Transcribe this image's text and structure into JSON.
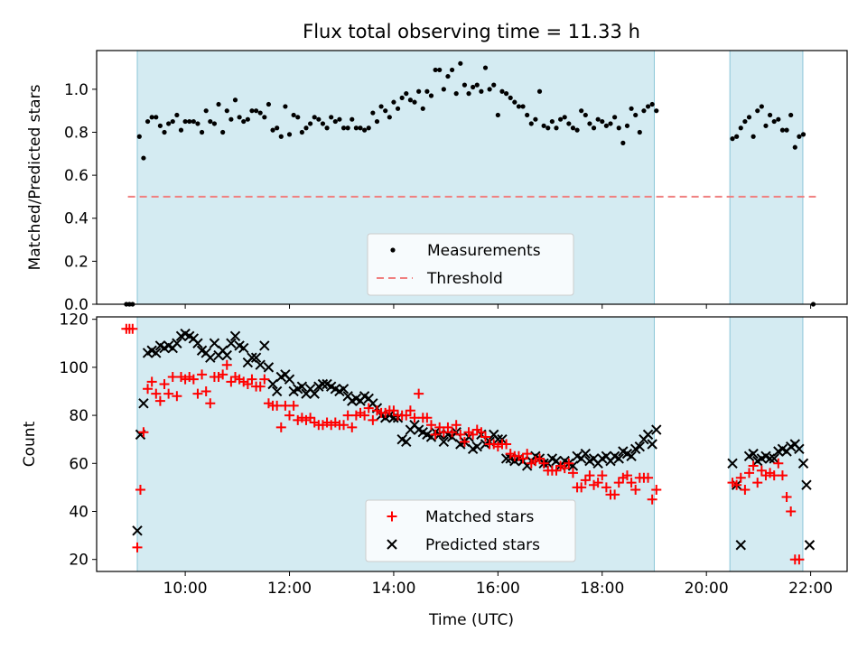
{
  "chart_data": [
    {
      "type": "scatter",
      "title": "Flux total observing time = 11.33 h",
      "ylabel": "Matched/Predicted stars",
      "xlabel": "",
      "xlim": [
        8.3,
        22.7
      ],
      "ylim": [
        0,
        1.18
      ],
      "yticks": [
        "0.0",
        "0.2",
        "0.4",
        "0.6",
        "0.8",
        "1.0"
      ],
      "legend_position": "bottom-center",
      "legend": [
        "Measurements",
        "Threshold"
      ],
      "observing_windows": [
        [
          9.08,
          19.0
        ],
        [
          20.45,
          21.85
        ]
      ],
      "threshold": {
        "y": 0.5,
        "x": [
          8.9,
          22.1
        ],
        "color": "#f08080"
      },
      "measurement_color": "#000000",
      "series": [
        {
          "name": "Measurements",
          "x": [
            8.87,
            8.93,
            8.99,
            9.12,
            9.2,
            9.28,
            9.36,
            9.44,
            9.52,
            9.6,
            9.68,
            9.76,
            9.84,
            9.92,
            10.0,
            10.08,
            10.16,
            10.24,
            10.32,
            10.4,
            10.48,
            10.56,
            10.64,
            10.72,
            10.8,
            10.88,
            10.96,
            11.04,
            11.12,
            11.2,
            11.28,
            11.36,
            11.44,
            11.52,
            11.6,
            11.68,
            11.76,
            11.84,
            11.92,
            12.0,
            12.08,
            12.16,
            12.24,
            12.32,
            12.4,
            12.48,
            12.56,
            12.64,
            12.72,
            12.8,
            12.88,
            12.96,
            13.04,
            13.12,
            13.2,
            13.28,
            13.36,
            13.44,
            13.52,
            13.6,
            13.68,
            13.76,
            13.84,
            13.92,
            14.0,
            14.08,
            14.16,
            14.24,
            14.32,
            14.4,
            14.48,
            14.56,
            14.64,
            14.72,
            14.8,
            14.88,
            14.96,
            15.04,
            15.12,
            15.2,
            15.28,
            15.36,
            15.44,
            15.52,
            15.6,
            15.68,
            15.76,
            15.84,
            15.92,
            16.0,
            16.08,
            16.16,
            16.24,
            16.32,
            16.4,
            16.48,
            16.56,
            16.64,
            16.72,
            16.8,
            16.88,
            16.96,
            17.04,
            17.12,
            17.2,
            17.28,
            17.36,
            17.44,
            17.52,
            17.6,
            17.68,
            17.76,
            17.84,
            17.92,
            18.0,
            18.08,
            18.16,
            18.24,
            18.32,
            18.4,
            18.48,
            18.56,
            18.64,
            18.72,
            18.8,
            18.88,
            18.96,
            19.04,
            20.5,
            20.58,
            20.66,
            20.74,
            20.82,
            20.9,
            20.98,
            21.06,
            21.14,
            21.22,
            21.3,
            21.38,
            21.46,
            21.54,
            21.62,
            21.7,
            21.78,
            21.86,
            22.05
          ],
          "y": [
            0.0,
            0.0,
            0.0,
            0.78,
            0.68,
            0.85,
            0.87,
            0.87,
            0.83,
            0.8,
            0.84,
            0.85,
            0.88,
            0.81,
            0.85,
            0.85,
            0.85,
            0.84,
            0.8,
            0.9,
            0.85,
            0.84,
            0.93,
            0.8,
            0.9,
            0.86,
            0.95,
            0.87,
            0.85,
            0.86,
            0.9,
            0.9,
            0.89,
            0.87,
            0.93,
            0.81,
            0.82,
            0.78,
            0.92,
            0.79,
            0.88,
            0.87,
            0.8,
            0.82,
            0.84,
            0.87,
            0.86,
            0.84,
            0.82,
            0.87,
            0.85,
            0.86,
            0.82,
            0.82,
            0.86,
            0.82,
            0.82,
            0.81,
            0.82,
            0.89,
            0.85,
            0.92,
            0.9,
            0.87,
            0.94,
            0.91,
            0.96,
            0.98,
            0.95,
            0.94,
            0.99,
            0.91,
            0.99,
            0.97,
            1.09,
            1.09,
            1.0,
            1.06,
            1.09,
            0.98,
            1.12,
            1.02,
            0.98,
            1.01,
            1.02,
            0.99,
            1.1,
            1.0,
            1.02,
            0.88,
            0.99,
            0.98,
            0.96,
            0.94,
            0.92,
            0.92,
            0.88,
            0.84,
            0.86,
            0.99,
            0.83,
            0.82,
            0.85,
            0.82,
            0.86,
            0.87,
            0.84,
            0.82,
            0.81,
            0.9,
            0.88,
            0.84,
            0.82,
            0.86,
            0.85,
            0.83,
            0.84,
            0.87,
            0.82,
            0.75,
            0.83,
            0.91,
            0.88,
            0.8,
            0.9,
            0.92,
            0.93,
            0.9,
            0.77,
            0.78,
            0.82,
            0.85,
            0.87,
            0.78,
            0.9,
            0.92,
            0.83,
            0.88,
            0.85,
            0.86,
            0.81,
            0.81,
            0.88,
            0.73,
            0.78,
            0.79,
            0.0
          ]
        }
      ]
    },
    {
      "type": "scatter",
      "title": "",
      "xlabel": "Time (UTC)",
      "ylabel": "Count",
      "xlim": [
        8.3,
        22.7
      ],
      "ylim": [
        15,
        121
      ],
      "yticks": [
        "20",
        "40",
        "60",
        "80",
        "100",
        "120"
      ],
      "xticks": [
        "10:00",
        "12:00",
        "14:00",
        "16:00",
        "18:00",
        "20:00",
        "22:00"
      ],
      "legend_position": "bottom-center",
      "legend": [
        "Matched stars",
        "Predicted stars"
      ],
      "observing_windows": [
        [
          9.08,
          19.0
        ],
        [
          20.45,
          21.85
        ]
      ],
      "matched_color": "#ff0000",
      "predicted_color": "#000000",
      "x": [
        8.87,
        8.93,
        8.99,
        9.08,
        9.14,
        9.2,
        9.28,
        9.36,
        9.44,
        9.52,
        9.6,
        9.68,
        9.76,
        9.84,
        9.92,
        10.0,
        10.08,
        10.16,
        10.24,
        10.32,
        10.4,
        10.48,
        10.56,
        10.64,
        10.72,
        10.8,
        10.88,
        10.96,
        11.04,
        11.12,
        11.2,
        11.28,
        11.36,
        11.44,
        11.52,
        11.6,
        11.68,
        11.76,
        11.84,
        11.92,
        12.0,
        12.08,
        12.16,
        12.24,
        12.32,
        12.4,
        12.48,
        12.56,
        12.64,
        12.72,
        12.8,
        12.88,
        12.96,
        13.04,
        13.12,
        13.2,
        13.28,
        13.36,
        13.44,
        13.52,
        13.6,
        13.68,
        13.76,
        13.84,
        13.92,
        14.0,
        14.08,
        14.16,
        14.24,
        14.32,
        14.4,
        14.48,
        14.56,
        14.64,
        14.72,
        14.8,
        14.88,
        14.96,
        15.04,
        15.12,
        15.2,
        15.28,
        15.36,
        15.44,
        15.52,
        15.6,
        15.68,
        15.76,
        15.84,
        15.92,
        16.0,
        16.08,
        16.16,
        16.24,
        16.32,
        16.4,
        16.48,
        16.56,
        16.64,
        16.72,
        16.8,
        16.88,
        16.96,
        17.04,
        17.12,
        17.2,
        17.28,
        17.36,
        17.44,
        17.52,
        17.6,
        17.68,
        17.76,
        17.84,
        17.92,
        18.0,
        18.08,
        18.16,
        18.24,
        18.32,
        18.4,
        18.48,
        18.56,
        18.64,
        18.72,
        18.8,
        18.88,
        18.96,
        19.04,
        20.5,
        20.58,
        20.66,
        20.74,
        20.82,
        20.9,
        20.98,
        21.06,
        21.14,
        21.22,
        21.3,
        21.38,
        21.46,
        21.54,
        21.62,
        21.7,
        21.78,
        21.86,
        21.92,
        21.98,
        22.05
      ],
      "series": [
        {
          "name": "Matched stars",
          "values": [
            116,
            116,
            116,
            25,
            49,
            73,
            91,
            94,
            89,
            86,
            93,
            89,
            96,
            88,
            96,
            95,
            96,
            95,
            89,
            97,
            90,
            85,
            96,
            96,
            97,
            101,
            94,
            96,
            95,
            94,
            93,
            95,
            92,
            92,
            95,
            85,
            84,
            84,
            75,
            84,
            80,
            84,
            78,
            79,
            78,
            79,
            77,
            76,
            76,
            77,
            76,
            77,
            76,
            76,
            80,
            75,
            80,
            81,
            80,
            83,
            78,
            82,
            81,
            81,
            82,
            82,
            80,
            80,
            80,
            82,
            79,
            89,
            79,
            79,
            76,
            72,
            75,
            73,
            75,
            73,
            76,
            72,
            69,
            73,
            72,
            74,
            73,
            71,
            68,
            68,
            67,
            68,
            68,
            64,
            63,
            63,
            62,
            64,
            60,
            61,
            62,
            60,
            57,
            57,
            57,
            59,
            58,
            60,
            56,
            50,
            50,
            53,
            55,
            51,
            52,
            55,
            50,
            47,
            47,
            52,
            54,
            55,
            52,
            49,
            54,
            54,
            54,
            45,
            49,
            52,
            51,
            54,
            49,
            56,
            59,
            52,
            57,
            55,
            56,
            55,
            60,
            55,
            46,
            40,
            20,
            20
          ]
        },
        {
          "name": "Predicted stars",
          "values": [
            null,
            null,
            null,
            32,
            72,
            85,
            106,
            107,
            106,
            109,
            108,
            109,
            108,
            110,
            113,
            114,
            113,
            112,
            110,
            107,
            106,
            104,
            110,
            105,
            107,
            105,
            110,
            113,
            109,
            108,
            102,
            104,
            104,
            101,
            109,
            100,
            93,
            90,
            96,
            97,
            95,
            90,
            91,
            92,
            89,
            91,
            89,
            92,
            93,
            93,
            92,
            91,
            90,
            91,
            88,
            86,
            87,
            86,
            88,
            87,
            85,
            83,
            80,
            79,
            80,
            79,
            79,
            70,
            69,
            74,
            76,
            74,
            73,
            72,
            71,
            73,
            72,
            69,
            72,
            71,
            73,
            68,
            69,
            71,
            66,
            67,
            72,
            68,
            69,
            72,
            70,
            70,
            62,
            62,
            61,
            62,
            61,
            59,
            61,
            63,
            62,
            60,
            60,
            62,
            61,
            59,
            61,
            60,
            59,
            63,
            62,
            64,
            61,
            62,
            60,
            62,
            63,
            61,
            63,
            62,
            65,
            64,
            63,
            66,
            67,
            70,
            72,
            68,
            74,
            60,
            51,
            26,
            null,
            63,
            64,
            61,
            62,
            63,
            62,
            62,
            65,
            66,
            65,
            67,
            68,
            66,
            60,
            51,
            26
          ]
        }
      ]
    }
  ]
}
